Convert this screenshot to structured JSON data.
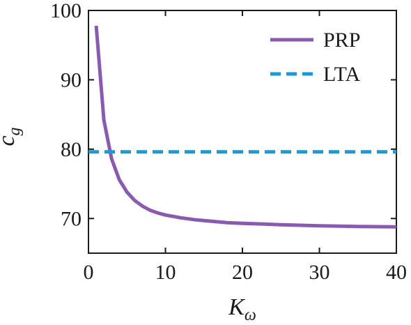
{
  "chart_data": {
    "type": "line",
    "xlabel": "K",
    "xlabel_sub": "ω",
    "ylabel": "c",
    "ylabel_sub": "g",
    "xlim": [
      0,
      40
    ],
    "ylim": [
      65,
      100
    ],
    "xticks": [
      0,
      10,
      20,
      30,
      40
    ],
    "yticks": [
      70,
      80,
      90,
      100
    ],
    "grid": false,
    "legend_position": "top-right",
    "series": [
      {
        "name": "PRP",
        "color": "#8a5ab0",
        "style": "solid",
        "x": [
          1,
          2,
          3,
          4,
          5,
          6,
          7,
          8,
          9,
          10,
          12,
          14,
          16,
          18,
          20,
          25,
          30,
          35,
          40
        ],
        "y": [
          97.8,
          84.2,
          78.6,
          75.6,
          73.8,
          72.6,
          71.8,
          71.2,
          70.8,
          70.5,
          70.1,
          69.8,
          69.6,
          69.4,
          69.3,
          69.1,
          68.95,
          68.85,
          68.8
        ]
      },
      {
        "name": "LTA",
        "color": "#1a9ad6",
        "style": "dashed",
        "x": [
          0,
          40
        ],
        "y": [
          79.6,
          79.6
        ]
      }
    ]
  }
}
